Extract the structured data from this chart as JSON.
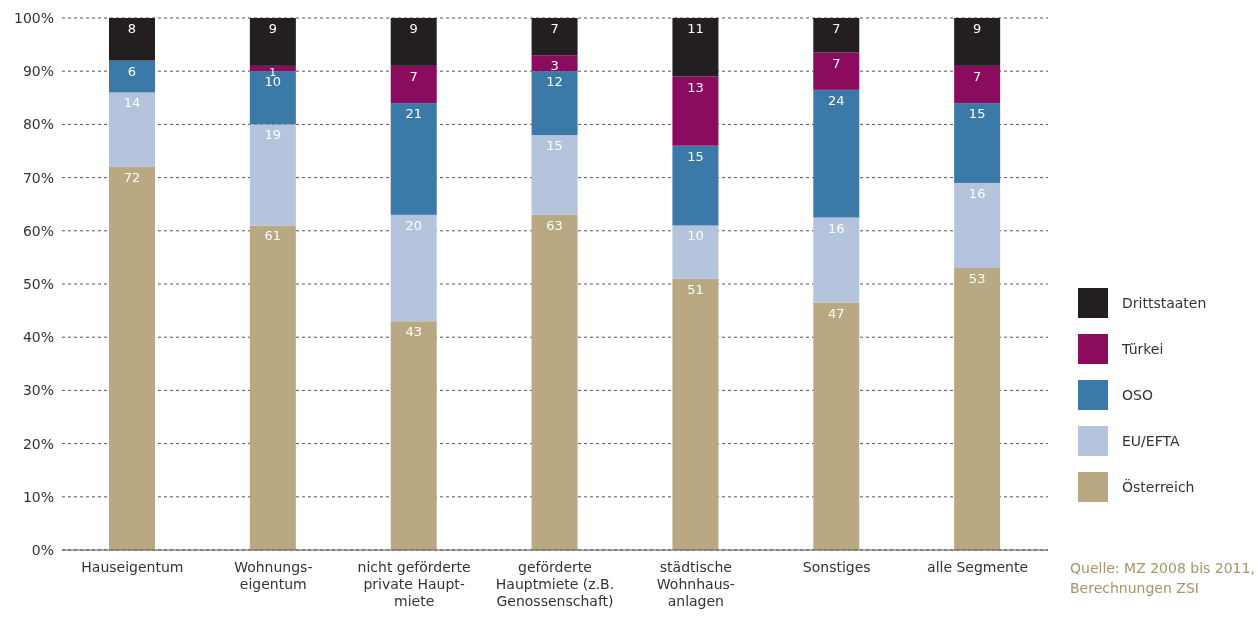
{
  "chart_data": {
    "type": "bar",
    "stacked": true,
    "categories": [
      "Hauseigentum",
      "Wohnungs-\neigentum",
      "nicht geförderte\nprivate Haupt-\nmiete",
      "geförderte\nHauptmiete (z.B.\nGenossenschaft)",
      "städtische\nWohnhaus-\nanlagen",
      "Sonstiges",
      "alle Segmente"
    ],
    "series": [
      {
        "name": "Österreich",
        "color": "#b9a983",
        "values": [
          72,
          61,
          43,
          63,
          51,
          46.5,
          53
        ],
        "value_labels": [
          "72",
          "61",
          "43",
          "63",
          "51",
          "47",
          "53"
        ]
      },
      {
        "name": "EU/EFTA",
        "color": "#b4c4dc",
        "values": [
          14,
          19,
          20,
          15,
          10,
          16,
          16
        ],
        "value_labels": [
          "14",
          "19",
          "20",
          "15",
          "10",
          "16",
          "16"
        ]
      },
      {
        "name": "OSO",
        "color": "#3b7aa8",
        "values": [
          6,
          10,
          21,
          12,
          15,
          24,
          15
        ],
        "value_labels": [
          "6",
          "10",
          "21",
          "12",
          "15",
          "24",
          "15"
        ]
      },
      {
        "name": "Türkei",
        "color": "#8b0b5f",
        "values": [
          0,
          1,
          7,
          3,
          13,
          7,
          7
        ],
        "value_labels": [
          null,
          "1",
          "7",
          "3",
          "13",
          "7",
          "7"
        ]
      },
      {
        "name": "Drittstaaten",
        "color": "#231f20",
        "values": [
          8,
          9,
          9,
          7,
          11,
          6.5,
          9
        ],
        "value_labels": [
          "8",
          "9",
          "9",
          "7",
          "11",
          "7",
          "9"
        ]
      }
    ],
    "ylim": [
      0,
      100
    ],
    "yticks": [
      {
        "value": 0,
        "label": "0%"
      },
      {
        "value": 10,
        "label": "10%"
      },
      {
        "value": 20,
        "label": "20%"
      },
      {
        "value": 30,
        "label": "30%"
      },
      {
        "value": 40,
        "label": "40%"
      },
      {
        "value": 50,
        "label": "50%"
      },
      {
        "value": 60,
        "label": "60%"
      },
      {
        "value": 70,
        "label": "70%"
      },
      {
        "value": 80,
        "label": "80%"
      },
      {
        "value": 90,
        "label": "90%"
      },
      {
        "value": 100,
        "label": "100%"
      }
    ],
    "grid": "y",
    "legend": "right",
    "annotations": [
      "Quelle: MZ 2008 bis 2011,\nBerechnungen ZSI"
    ]
  }
}
